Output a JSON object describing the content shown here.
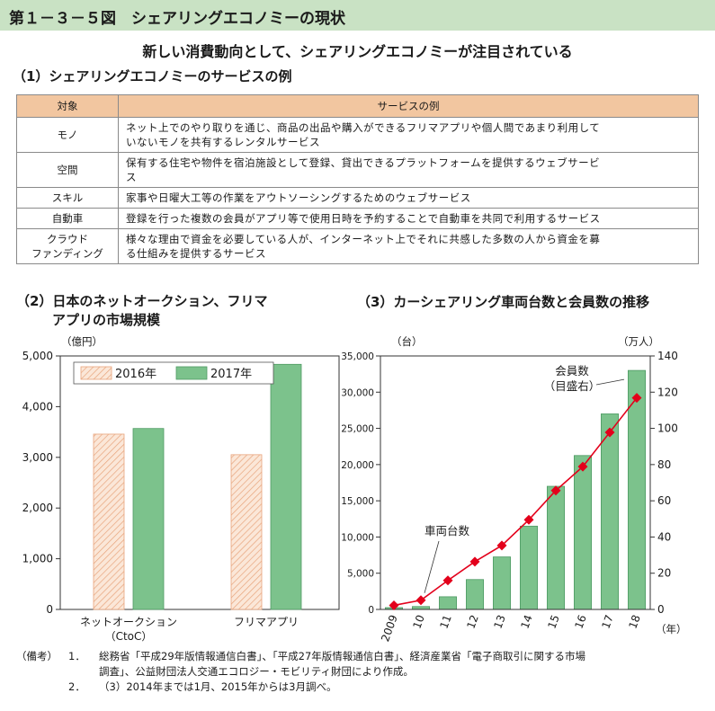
{
  "figure_title": "第１－３－５図　シェアリングエコノミーの現状",
  "main_title": "新しい消費動向として、シェアリングエコノミーが注目されている",
  "section1": {
    "title": "（1）シェアリングエコノミーのサービスの例",
    "columns": [
      "対象",
      "サービスの例"
    ],
    "rows": [
      {
        "target": [
          "モノ"
        ],
        "desc": [
          "ネット上でのやり取りを通じ、商品の出品や購入ができるフリマアプリや個人間であまり利用して",
          "いないモノを共有するレンタルサービス"
        ]
      },
      {
        "target": [
          "空間"
        ],
        "desc": [
          "保有する住宅や物件を宿泊施設として登録、貸出できるプラットフォームを提供するウェブサービ",
          "ス"
        ]
      },
      {
        "target": [
          "スキル"
        ],
        "desc": [
          "家事や日曜大工等の作業をアウトソーシングするためのウェブサービス"
        ]
      },
      {
        "target": [
          "自動車"
        ],
        "desc": [
          "登録を行った複数の会員がアプリ等で使用日時を予約することで自動車を共同で利用するサービス"
        ]
      },
      {
        "target": [
          "クラウド",
          "ファンディング"
        ],
        "desc": [
          "様々な理由で資金を必要している人が、インターネット上でそれに共感した多数の人から資金を募",
          "る仕組みを提供するサービス"
        ]
      }
    ]
  },
  "section2_title": [
    "（2）日本のネットオークション、フリマ",
    "アプリの市場規模"
  ],
  "section3_title": "（3）カーシェアリング車両台数と会員数の推移",
  "colors": {
    "orange_fill": "#fbe7d8",
    "orange_stroke": "#e8a47c",
    "green": "#7cc28c",
    "green_dark": "#4e9a63",
    "red": "#e3001b",
    "header_bg": "#c9e2c4",
    "table_header_bg": "#f2c6a0"
  },
  "chart_data": [
    {
      "type": "bar",
      "ylabel": "（億円）",
      "ylim": [
        0,
        5000
      ],
      "yticks": [
        "0",
        "1,000",
        "2,000",
        "3,000",
        "4,000",
        "5,000"
      ],
      "categories": [
        [
          "ネットオークション",
          "（CtoC）"
        ],
        [
          "フリマアプリ"
        ]
      ],
      "series": [
        {
          "name": "2016年",
          "values": [
            3458,
            3052
          ]
        },
        {
          "name": "2017年",
          "values": [
            3569,
            4835
          ]
        }
      ],
      "legend": "top-left"
    },
    {
      "type": "bar+line",
      "ylabel_left": "（台）",
      "ylabel_right": "（万人）",
      "ylim_left": [
        0,
        35000
      ],
      "ylim_right": [
        0,
        140
      ],
      "yticks_left": [
        "0",
        "5,000",
        "10,000",
        "15,000",
        "20,000",
        "25,000",
        "30,000",
        "35,000"
      ],
      "yticks_right": [
        "0",
        "20",
        "40",
        "60",
        "80",
        "100",
        "120",
        "140"
      ],
      "x_labels": [
        "2009",
        "10",
        "11",
        "12",
        "13",
        "14",
        "15",
        "16",
        "17",
        "18"
      ],
      "x_unit": "（年）",
      "bars": {
        "name": "会員数（目盛右）",
        "label_lines": [
          "会員数",
          "（目盛右）"
        ],
        "values": [
          1,
          1.6,
          7,
          16.5,
          29,
          46,
          68,
          85,
          108,
          132
        ]
      },
      "line": {
        "name": "車両台数",
        "values": [
          563,
          1265,
          4000,
          6600,
          8831,
          12373,
          16418,
          19717,
          24458,
          29208
        ]
      }
    }
  ],
  "notes": {
    "label": "（備考）",
    "items": [
      {
        "num": "1．",
        "lines": [
          "総務省「平成29年版情報通信白書」、「平成27年版情報通信白書」、経済産業省「電子商取引に関する市場",
          "調査」、公益財団法人交通エコロジー・モビリティ財団により作成。"
        ]
      },
      {
        "num": "2．",
        "lines": [
          "（3）2014年までは1月、2015年からは3月調べ。"
        ]
      }
    ]
  }
}
